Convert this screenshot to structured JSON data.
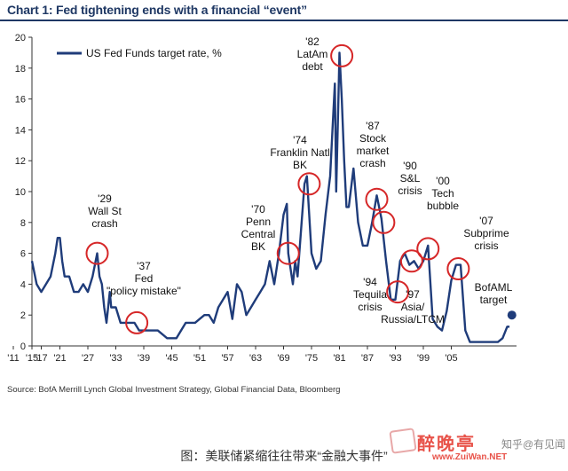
{
  "chart_title": "Chart 1: Fed tightening ends with a financial “event”",
  "source": "Source: BofA Merrill Lynch Global Investment Strategy, Global Financial Data, Bloomberg",
  "caption": "图：美联储紧缩往往带来“金融大事件”",
  "watermark": {
    "logo": "醉晚亭",
    "url": "www.ZuiWan.NET",
    "side_text": "知乎@有见闻"
  },
  "chart_data": {
    "type": "line",
    "title": "Chart 1: Fed tightening ends with a financial “event”",
    "xlabel": "",
    "ylabel": "",
    "xlim": [
      1915,
      2019
    ],
    "ylim": [
      0,
      20
    ],
    "x_ticks": [
      "'15",
      "'21",
      "'27",
      "'33",
      "'39",
      "'45",
      "'51",
      "'57",
      "'63",
      "'69",
      "'75",
      "'81",
      "'87",
      "'93",
      "'99",
      "'05",
      "'11",
      "'17"
    ],
    "y_ticks": [
      0,
      2,
      4,
      6,
      8,
      10,
      12,
      14,
      16,
      18,
      20
    ],
    "grid": false,
    "legend_position": "top-left",
    "line_color": "#1f3c7a",
    "highlight_color": "#d62728",
    "series": [
      {
        "name": "US Fed Funds target rate, %",
        "points": [
          [
            1915,
            5.5
          ],
          [
            1916,
            4.0
          ],
          [
            1917,
            3.5
          ],
          [
            1918,
            4.0
          ],
          [
            1919,
            4.5
          ],
          [
            1920,
            6.0
          ],
          [
            1920.5,
            7.0
          ],
          [
            1921,
            7.0
          ],
          [
            1921.5,
            5.5
          ],
          [
            1922,
            4.5
          ],
          [
            1923,
            4.5
          ],
          [
            1924,
            3.5
          ],
          [
            1925,
            3.5
          ],
          [
            1926,
            4.0
          ],
          [
            1927,
            3.5
          ],
          [
            1928,
            4.5
          ],
          [
            1929,
            6.0
          ],
          [
            1929.5,
            4.5
          ],
          [
            1930,
            4.0
          ],
          [
            1930.5,
            2.5
          ],
          [
            1931,
            1.5
          ],
          [
            1931.7,
            3.5
          ],
          [
            1932,
            2.5
          ],
          [
            1933,
            2.5
          ],
          [
            1934,
            1.5
          ],
          [
            1935,
            1.5
          ],
          [
            1937,
            1.5
          ],
          [
            1938,
            1.0
          ],
          [
            1940,
            1.0
          ],
          [
            1942,
            1.0
          ],
          [
            1944,
            0.5
          ],
          [
            1946,
            0.5
          ],
          [
            1947,
            1.0
          ],
          [
            1948,
            1.5
          ],
          [
            1950,
            1.5
          ],
          [
            1951,
            1.75
          ],
          [
            1952,
            2.0
          ],
          [
            1953,
            2.0
          ],
          [
            1954,
            1.5
          ],
          [
            1955,
            2.5
          ],
          [
            1956,
            3.0
          ],
          [
            1957,
            3.5
          ],
          [
            1958,
            1.75
          ],
          [
            1959,
            4.0
          ],
          [
            1960,
            3.5
          ],
          [
            1961,
            2.0
          ],
          [
            1962,
            2.5
          ],
          [
            1963,
            3.0
          ],
          [
            1964,
            3.5
          ],
          [
            1965,
            4.0
          ],
          [
            1966,
            5.5
          ],
          [
            1967,
            4.0
          ],
          [
            1968,
            6.0
          ],
          [
            1969,
            8.5
          ],
          [
            1969.7,
            9.2
          ],
          [
            1970,
            6.0
          ],
          [
            1971,
            4.0
          ],
          [
            1971.5,
            5.5
          ],
          [
            1972,
            4.5
          ],
          [
            1973,
            8.5
          ],
          [
            1973.5,
            10.5
          ],
          [
            1974,
            11.0
          ],
          [
            1974.5,
            8.5
          ],
          [
            1975,
            6.0
          ],
          [
            1976,
            5.0
          ],
          [
            1977,
            5.5
          ],
          [
            1978,
            8.5
          ],
          [
            1979,
            11.0
          ],
          [
            1979.5,
            14.0
          ],
          [
            1980,
            17.0
          ],
          [
            1980.3,
            10.0
          ],
          [
            1980.7,
            15.0
          ],
          [
            1981,
            19.0
          ],
          [
            1981.5,
            16.0
          ],
          [
            1982,
            12.0
          ],
          [
            1982.5,
            9.0
          ],
          [
            1983,
            9.0
          ],
          [
            1984,
            11.5
          ],
          [
            1985,
            8.0
          ],
          [
            1986,
            6.5
          ],
          [
            1987,
            6.5
          ],
          [
            1988,
            8.0
          ],
          [
            1989,
            9.75
          ],
          [
            1990,
            8.25
          ],
          [
            1991,
            5.5
          ],
          [
            1992,
            3.0
          ],
          [
            1993,
            3.0
          ],
          [
            1994,
            5.5
          ],
          [
            1995,
            6.0
          ],
          [
            1996,
            5.25
          ],
          [
            1997,
            5.5
          ],
          [
            1998,
            5.0
          ],
          [
            1999,
            5.5
          ],
          [
            2000,
            6.5
          ],
          [
            2001,
            1.75
          ],
          [
            2002,
            1.25
          ],
          [
            2003,
            1.0
          ],
          [
            2004,
            2.25
          ],
          [
            2005,
            4.25
          ],
          [
            2006,
            5.25
          ],
          [
            2007,
            5.25
          ],
          [
            2008,
            1.0
          ],
          [
            2009,
            0.25
          ],
          [
            2012,
            0.25
          ],
          [
            2015,
            0.25
          ],
          [
            2016,
            0.5
          ],
          [
            2017,
            1.25
          ],
          [
            2017.5,
            1.25
          ]
        ]
      }
    ],
    "target_point": {
      "x": 2018,
      "y": 2.0,
      "label_lines": [
        "BofAML",
        "target"
      ]
    },
    "annotations": [
      {
        "lines": [
          "'29",
          "Wall St",
          "crash"
        ],
        "circle": [
          1929,
          6.0
        ]
      },
      {
        "lines": [
          "'37",
          "Fed",
          "\"policy mistake\""
        ],
        "circle": [
          1937.5,
          1.5
        ]
      },
      {
        "lines": [
          "'70",
          "Penn",
          "Central",
          "BK"
        ],
        "circle": [
          1970,
          6.0
        ]
      },
      {
        "lines": [
          "'74",
          "Franklin Natl",
          "BK"
        ],
        "circle": [
          1974.5,
          10.5
        ]
      },
      {
        "lines": [
          "'82",
          "LatAm",
          "debt"
        ],
        "circle": [
          1981.5,
          18.8
        ]
      },
      {
        "lines": [
          "'87",
          "Stock",
          "market",
          "crash"
        ],
        "circle": [
          1989,
          9.5
        ]
      },
      {
        "lines": [
          "'90",
          "S&L",
          "crisis"
        ],
        "circle": [
          1990.5,
          8.0
        ]
      },
      {
        "lines": [
          "'94",
          "Tequila",
          "crisis"
        ],
        "circle": [
          1993.5,
          3.5
        ]
      },
      {
        "lines": [
          "'97",
          "Asia/",
          "Russia/LTCM"
        ],
        "circle": [
          1996.5,
          5.5
        ]
      },
      {
        "lines": [
          "'00",
          "Tech",
          "bubble"
        ],
        "circle": [
          2000,
          6.3
        ]
      },
      {
        "lines": [
          "'07",
          "Subprime",
          "crisis"
        ],
        "circle": [
          2006.5,
          5.0
        ]
      }
    ]
  }
}
